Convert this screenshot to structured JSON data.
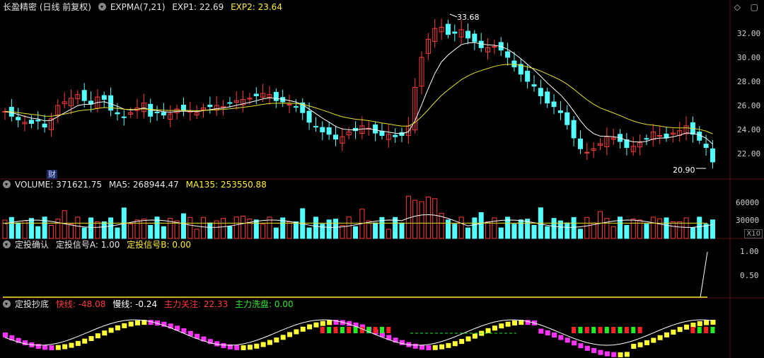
{
  "main": {
    "title": "长盈精密 (日线 前复权)",
    "indicator": "EXPMA(7,21)",
    "exp1": "EXP1: 22.69",
    "exp2": "EXP2: 23.64",
    "high_label": "33.68",
    "low_label": "20.90",
    "finance_tag": "财",
    "y_ticks": [
      "32.00",
      "30.00",
      "28.00",
      "26.00",
      "24.00",
      "22.00"
    ],
    "y_values": [
      32,
      30,
      28,
      26,
      24,
      22
    ],
    "colors": {
      "up": "#ff3b3b",
      "down": "#54ffff",
      "exp1": "#ffffff",
      "exp2": "#e8e22a"
    }
  },
  "volume": {
    "label": "VOLUME: 371621.75",
    "ma5": "MA5: 268944.47",
    "ma135": "MA135: 253550.88",
    "y_ticks": [
      "60000",
      "30000"
    ],
    "scale": "X10"
  },
  "confirm": {
    "label": "定投确认",
    "signal_a": "定投信号A: 1.00",
    "signal_b": "定投信号B: 0.00",
    "y_ticks": [
      "1.00",
      "0.50"
    ]
  },
  "bottom": {
    "label": "定投抄底",
    "fast": "快线: -48.08",
    "slow": "慢线: -0.24",
    "main_attention": "主力关注: 22.33",
    "main_wash": "主力洗盘: 0.00"
  }
}
